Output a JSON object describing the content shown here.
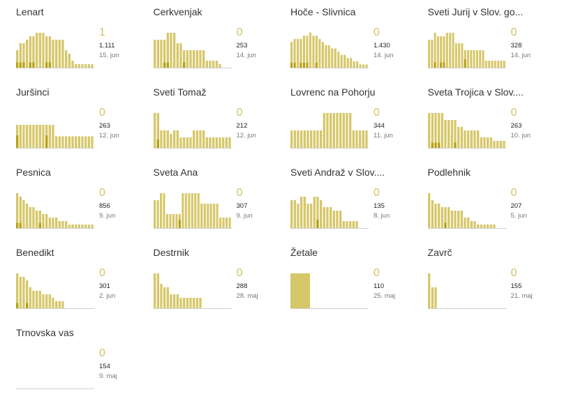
{
  "colors": {
    "bar": "#d6c769",
    "dark": "#b89f0c",
    "axis": "#cfcfcf",
    "big": "#d4c364"
  },
  "chart_data": [
    {
      "type": "bar",
      "title": "Lenart",
      "current": "1",
      "total": "1.111",
      "date": "15. jun",
      "values": [
        5,
        7,
        7,
        8,
        9,
        9,
        10,
        10,
        10,
        9,
        9,
        8,
        8,
        8,
        8,
        5,
        4,
        2,
        1,
        1,
        1,
        1,
        1,
        1
      ],
      "dark_values": [
        1,
        1,
        1,
        0,
        1,
        1,
        0,
        0,
        0,
        1,
        1,
        0,
        0,
        0,
        0,
        0,
        0,
        0,
        0,
        0,
        0,
        0,
        0,
        0
      ],
      "ylim": [
        0,
        11
      ]
    },
    {
      "type": "bar",
      "title": "Cerkvenjak",
      "current": "0",
      "total": "253",
      "date": "14. jun",
      "values": [
        8,
        8,
        8,
        8,
        10,
        10,
        10,
        7,
        7,
        5,
        5,
        5,
        5,
        5,
        5,
        5,
        2,
        2,
        2,
        2,
        1
      ],
      "dark_values": [
        0,
        0,
        0,
        1,
        1,
        0,
        0,
        0,
        0,
        1,
        0,
        0,
        0,
        0,
        0,
        0,
        0,
        0,
        0,
        0,
        0
      ],
      "ylim": [
        0,
        11
      ]
    },
    {
      "type": "bar",
      "title": "Hoče - Slivnica",
      "current": "0",
      "total": "1.430",
      "date": "14. jun",
      "values": [
        8,
        9,
        9,
        9,
        10,
        10,
        11,
        10,
        10,
        9,
        8,
        7,
        7,
        6,
        6,
        5,
        4,
        4,
        3,
        3,
        2,
        2,
        1,
        1,
        1
      ],
      "dark_values": [
        1,
        1,
        0,
        1,
        1,
        1,
        0,
        0,
        1,
        0,
        0,
        0,
        0,
        0,
        0,
        0,
        0,
        0,
        0,
        0,
        0,
        0,
        0,
        0
      ],
      "ylim": [
        0,
        12
      ]
    },
    {
      "type": "bar",
      "title": "Sveti Jurij v Slov. go...",
      "current": "0",
      "total": "328",
      "date": "14. jun",
      "values": [
        8,
        8,
        10,
        9,
        9,
        9,
        10,
        10,
        10,
        7,
        7,
        7,
        5,
        5,
        5,
        5,
        5,
        5,
        5,
        2,
        2,
        2,
        2,
        2,
        2,
        2
      ],
      "dark_values": [
        0,
        0,
        1,
        0,
        1,
        1,
        0,
        0,
        0,
        0,
        0,
        0,
        2,
        0,
        0,
        0,
        0,
        0,
        0,
        0,
        0,
        0,
        0,
        0,
        0,
        0
      ],
      "ylim": [
        0,
        11
      ]
    },
    {
      "type": "bar",
      "title": "Juršinci",
      "current": "0",
      "total": "263",
      "date": "12. jun",
      "values": [
        6,
        6,
        6,
        6,
        6,
        6,
        6,
        6,
        6,
        6,
        6,
        6,
        3,
        3,
        3,
        3,
        3,
        3,
        3,
        3,
        3,
        3,
        3,
        3
      ],
      "dark_values": [
        3,
        0,
        0,
        0,
        0,
        0,
        0,
        0,
        0,
        3,
        0,
        0,
        0,
        0,
        0,
        0,
        0,
        0,
        0,
        0,
        0,
        0,
        0,
        0
      ],
      "ylim": [
        0,
        10
      ]
    },
    {
      "type": "bar",
      "title": "Sveti Tomaž",
      "current": "0",
      "total": "212",
      "date": "12. jun",
      "values": [
        10,
        10,
        5,
        5,
        5,
        4,
        5,
        5,
        3,
        3,
        3,
        3,
        5,
        5,
        5,
        5,
        3,
        3,
        3,
        3,
        3,
        3,
        3,
        3
      ],
      "dark_values": [
        0,
        2,
        0,
        0,
        0,
        0,
        0,
        0,
        0,
        0,
        0,
        0,
        0,
        0,
        0,
        0,
        0,
        0,
        0,
        0,
        0,
        0,
        0,
        0
      ],
      "ylim": [
        0,
        11
      ]
    },
    {
      "type": "bar",
      "title": "Lovrenc na Pohorju",
      "current": "0",
      "total": "344",
      "date": "11. jun",
      "values": [
        5,
        5,
        5,
        5,
        5,
        5,
        5,
        5,
        5,
        5,
        10,
        10,
        10,
        10,
        10,
        10,
        10,
        10,
        10,
        5,
        5,
        5,
        5,
        5
      ],
      "dark_values": [
        0,
        0,
        0,
        0,
        0,
        0,
        0,
        0,
        0,
        0,
        0,
        0,
        0,
        0,
        0,
        0,
        0,
        0,
        0,
        0,
        0,
        0,
        0,
        0
      ],
      "ylim": [
        0,
        11
      ]
    },
    {
      "type": "bar",
      "title": "Sveta Trojica v Slov....",
      "current": "0",
      "total": "263",
      "date": "10. jun",
      "values": [
        10,
        10,
        10,
        10,
        10,
        8,
        8,
        8,
        8,
        6,
        6,
        5,
        5,
        5,
        5,
        5,
        3,
        3,
        3,
        3,
        2,
        2,
        2,
        2
      ],
      "dark_values": [
        0,
        1,
        1,
        1,
        0,
        0,
        0,
        0,
        1,
        0,
        0,
        0,
        0,
        0,
        0,
        0,
        0,
        0,
        0,
        0,
        0,
        0,
        0,
        0
      ],
      "ylim": [
        0,
        11
      ]
    },
    {
      "type": "bar",
      "title": "Pesnica",
      "current": "0",
      "total": "856",
      "date": "9. jun",
      "values": [
        10,
        9,
        8,
        7,
        6,
        6,
        5,
        5,
        4,
        4,
        3,
        3,
        3,
        2,
        2,
        2,
        1,
        1,
        1,
        1,
        1,
        1,
        1,
        1
      ],
      "dark_values": [
        1,
        1,
        0,
        0,
        0,
        0,
        0,
        1,
        0,
        0,
        0,
        0,
        0,
        0,
        0,
        0,
        0,
        0,
        0,
        0,
        0,
        0,
        0,
        0
      ],
      "ylim": [
        0,
        11
      ]
    },
    {
      "type": "bar",
      "title": "Sveta Ana",
      "current": "0",
      "total": "307",
      "date": "9. jun",
      "values": [
        8,
        8,
        10,
        10,
        4,
        4,
        4,
        4,
        4,
        10,
        10,
        10,
        10,
        10,
        10,
        7,
        7,
        7,
        7,
        7,
        7,
        3,
        3,
        3,
        3
      ],
      "dark_values": [
        0,
        0,
        0,
        0,
        0,
        0,
        0,
        0,
        2,
        0,
        0,
        0,
        0,
        0,
        0,
        0,
        0,
        0,
        0,
        0,
        0,
        0,
        0,
        0,
        0
      ],
      "ylim": [
        0,
        11
      ]
    },
    {
      "type": "bar",
      "title": "Sveti Andraž v Slov....",
      "current": "0",
      "total": "135",
      "date": "8. jun",
      "values": [
        8,
        8,
        7,
        9,
        9,
        7,
        7,
        9,
        9,
        8,
        6,
        6,
        6,
        5,
        5,
        5,
        2,
        2,
        2,
        2,
        2
      ],
      "dark_values": [
        0,
        0,
        0,
        0,
        0,
        0,
        0,
        0,
        2,
        0,
        0,
        0,
        0,
        0,
        0,
        0,
        0,
        0,
        0,
        0,
        0
      ],
      "ylim": [
        0,
        11
      ]
    },
    {
      "type": "bar",
      "title": "Podlehnik",
      "current": "0",
      "total": "207",
      "date": "5. jun",
      "values": [
        10,
        8,
        7,
        7,
        6,
        6,
        6,
        5,
        5,
        5,
        5,
        3,
        3,
        2,
        2,
        1,
        1,
        1,
        1,
        1,
        1
      ],
      "dark_values": [
        0,
        0,
        0,
        0,
        0,
        1,
        0,
        0,
        0,
        0,
        0,
        0,
        0,
        0,
        0,
        0,
        0,
        0,
        0,
        0,
        0
      ],
      "ylim": [
        0,
        11
      ]
    },
    {
      "type": "bar",
      "title": "Benedikt",
      "current": "0",
      "total": "301",
      "date": "2. jun",
      "values": [
        10,
        9,
        9,
        8,
        6,
        5,
        5,
        5,
        4,
        4,
        4,
        3,
        2,
        2,
        2
      ],
      "dark_values": [
        1,
        0,
        0,
        1,
        0,
        0,
        0,
        0,
        0,
        0,
        0,
        0,
        0,
        0,
        0
      ],
      "ylim": [
        0,
        11
      ]
    },
    {
      "type": "bar",
      "title": "Destrnik",
      "current": "0",
      "total": "288",
      "date": "28. maj",
      "values": [
        10,
        10,
        7,
        6,
        6,
        4,
        4,
        4,
        3,
        3,
        3,
        3,
        3,
        3,
        3
      ],
      "dark_values": [
        0,
        0,
        0,
        0,
        0,
        0,
        0,
        0,
        0,
        0,
        0,
        0,
        0,
        0,
        0
      ],
      "ylim": [
        0,
        11
      ]
    },
    {
      "type": "bar",
      "title": "Žetale",
      "current": "0",
      "total": "110",
      "date": "25. maj",
      "values": [
        10
      ],
      "dark_values": [
        0
      ],
      "ylim": [
        0,
        11
      ],
      "bar_width_override": true
    },
    {
      "type": "bar",
      "title": "Zavrč",
      "current": "0",
      "total": "155",
      "date": "21. maj",
      "values": [
        10,
        6,
        6
      ],
      "dark_values": [
        0,
        0,
        0
      ],
      "ylim": [
        0,
        11
      ]
    },
    {
      "type": "bar",
      "title": "Trnovska vas",
      "current": "0",
      "total": "154",
      "date": "9. maj",
      "values": [],
      "dark_values": [],
      "ylim": [
        0,
        11
      ]
    }
  ]
}
